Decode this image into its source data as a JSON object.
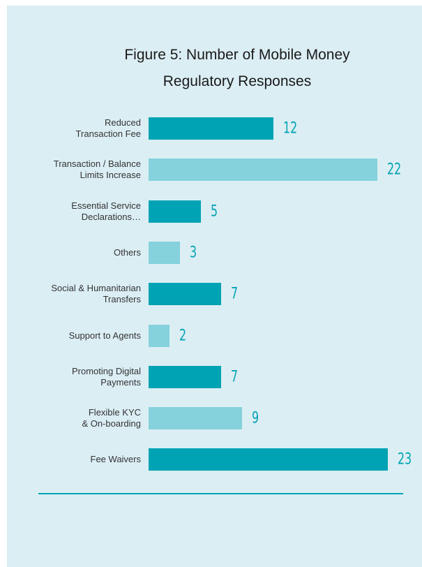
{
  "chart_data": {
    "type": "bar",
    "orientation": "horizontal",
    "title": "Figure 5: Number of Mobile Money\nRegulatory Responses",
    "categories": [
      "Reduced\nTransaction Fee",
      "Transaction / Balance\nLimits Increase",
      "Essential Service\nDeclarations…",
      "Others",
      "Social & Humanitarian\nTransfers",
      "Support to Agents",
      "Promoting Digital\nPayments",
      "Flexible KYC\n& On-boarding",
      "Fee Waivers"
    ],
    "values": [
      12,
      22,
      5,
      3,
      7,
      2,
      7,
      9,
      23
    ],
    "colors": [
      "#00a3b4",
      "#85d1dc",
      "#00a3b4",
      "#85d1dc",
      "#00a3b4",
      "#85d1dc",
      "#00a3b4",
      "#85d1dc",
      "#00a3b4"
    ],
    "label_color": "#00a3b4"
  }
}
